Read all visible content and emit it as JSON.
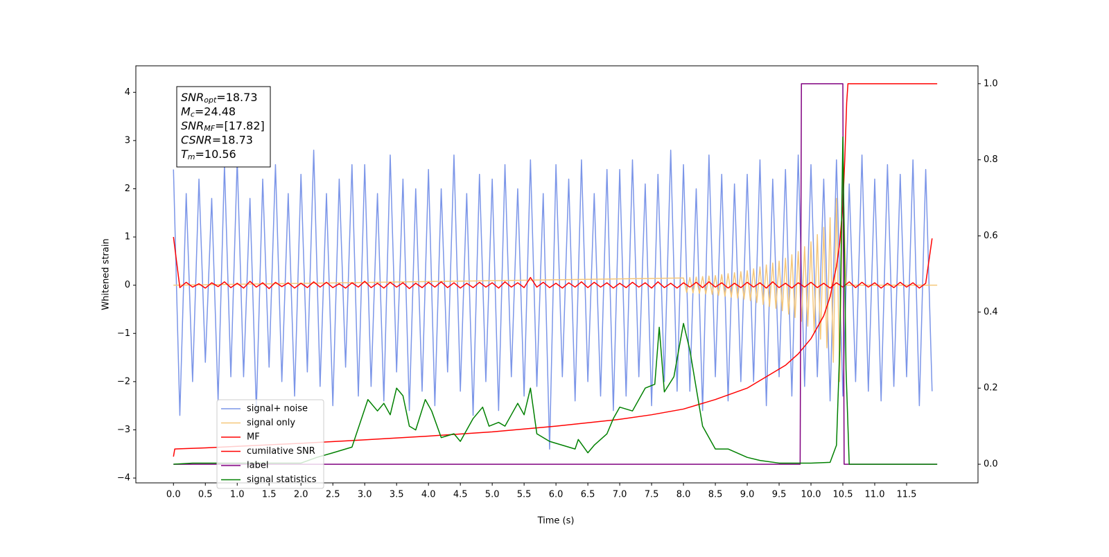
{
  "chart_data": {
    "type": "line",
    "xlabel": "Time (s)",
    "ylabel": "Whitened strain",
    "xlim": [
      -0.59,
      12.62
    ],
    "ylim": [
      -4.1,
      4.55
    ],
    "y2lim": [
      -0.049,
      1.047
    ],
    "xticks": [
      {
        "value": 0,
        "label": "0.0"
      },
      0.5,
      {
        "value": 1,
        "label": "1.0"
      },
      1.5,
      {
        "value": 2,
        "label": "2.0"
      },
      2.5,
      {
        "value": 3,
        "label": "3.0"
      },
      3.5,
      {
        "value": 4,
        "label": "4.0"
      },
      4.5,
      {
        "value": 5,
        "label": "5.0"
      },
      5.5,
      {
        "value": 6,
        "label": "6.0"
      },
      6.5,
      {
        "value": 7,
        "label": "7.0"
      },
      7.5,
      {
        "value": 8,
        "label": "8.0"
      },
      8.5,
      {
        "value": 9,
        "label": "9.0"
      },
      9.5,
      {
        "value": 10,
        "label": "10.0"
      },
      10.5,
      {
        "value": 11,
        "label": "11.0"
      },
      11.5
    ],
    "yticks": [
      {
        "value": -4,
        "label": "−4"
      },
      {
        "value": -3,
        "label": "−3"
      },
      {
        "value": -2,
        "label": "−2"
      },
      {
        "value": -1,
        "label": "−1"
      },
      0,
      1,
      2,
      3,
      4
    ],
    "y2ticks": [
      {
        "value": 0,
        "label": "0.0"
      },
      0.2,
      0.4,
      0.6,
      0.8,
      {
        "value": 1,
        "label": "1.0"
      }
    ],
    "legend_loc": "lower left",
    "annotation_box": [
      {
        "symbol": "SNR",
        "subscript": "opt",
        "text": "=18.73"
      },
      {
        "symbol": "M",
        "subscript": "c",
        "text": "=24.48"
      },
      {
        "symbol": "SNR",
        "subscript": "MF",
        "text": "=[17.82]"
      },
      {
        "symbol": "CSNR",
        "text": "=18.73"
      },
      {
        "symbol": "T",
        "subscript": "m",
        "text": "=10.56"
      }
    ],
    "x": [
      0,
      0.1,
      0.2,
      0.3,
      0.4,
      0.5,
      0.6,
      0.7,
      0.8,
      0.9,
      1,
      1.1,
      1.2,
      1.3,
      1.4,
      1.5,
      1.6,
      1.7,
      1.8,
      1.9,
      2,
      2.1,
      2.2,
      2.3,
      2.4,
      2.5,
      2.6,
      2.7,
      2.8,
      2.9,
      3,
      3.1,
      3.2,
      3.3,
      3.4,
      3.5,
      3.6,
      3.7,
      3.8,
      3.9,
      4,
      4.1,
      4.2,
      4.3,
      4.4,
      4.5,
      4.6,
      4.7,
      4.8,
      4.9,
      5,
      5.1,
      5.2,
      5.3,
      5.4,
      5.5,
      5.6,
      5.7,
      5.8,
      5.9,
      6,
      6.1,
      6.2,
      6.3,
      6.4,
      6.5,
      6.6,
      6.7,
      6.8,
      6.9,
      7,
      7.1,
      7.2,
      7.3,
      7.4,
      7.5,
      7.6,
      7.7,
      7.8,
      7.9,
      8,
      8.1,
      8.2,
      8.3,
      8.4,
      8.5,
      8.6,
      8.7,
      8.8,
      8.9,
      9,
      9.1,
      9.2,
      9.3,
      9.4,
      9.5,
      9.6,
      9.7,
      9.8,
      9.9,
      10,
      10.1,
      10.2,
      10.3,
      10.4,
      10.5,
      10.6,
      10.7,
      10.8,
      10.9,
      11,
      11.1,
      11.2,
      11.3,
      11.4,
      11.5,
      11.6,
      11.7,
      11.8,
      11.9
    ],
    "series": [
      {
        "name": "signal+ noise",
        "color": "#7b95e8",
        "values": [
          2.4,
          -2.7,
          1.9,
          -2.0,
          2.2,
          -1.6,
          1.8,
          -2.4,
          2.5,
          -1.9,
          2.6,
          -1.9,
          1.8,
          -2.6,
          2.2,
          -1.7,
          2.5,
          -2.0,
          1.9,
          -2.3,
          2.3,
          -1.8,
          2.8,
          -2.1,
          1.9,
          -2.5,
          2.2,
          -1.7,
          2.5,
          -2.3,
          2.5,
          -2.1,
          1.9,
          -2.4,
          2.7,
          -1.8,
          2.2,
          -2.6,
          2.0,
          -2.2,
          2.4,
          -2.5,
          2.0,
          -1.8,
          2.7,
          -2.2,
          1.9,
          -2.7,
          2.3,
          -2.0,
          2.2,
          -2.6,
          2.5,
          -1.9,
          2.0,
          -2.3,
          2.6,
          -2.1,
          1.9,
          -3.4,
          2.5,
          -1.9,
          2.2,
          -2.4,
          2.6,
          -2.0,
          1.9,
          -2.3,
          2.4,
          -2.6,
          2.4,
          -2.3,
          2.6,
          -1.9,
          2.1,
          -2.5,
          2.3,
          -2.0,
          2.8,
          -2.2,
          2.5,
          -2.2,
          2.0,
          -2.6,
          2.7,
          -1.9,
          2.3,
          -2.4,
          2.1,
          -2.0,
          2.3,
          -2.0,
          2.6,
          -2.5,
          2.2,
          -1.9,
          2.4,
          -2.3,
          2.7,
          -2.1,
          2.5,
          -1.9,
          2.2,
          -2.4,
          2.6,
          -2.3,
          2.1,
          -2.0,
          2.7,
          -2.2,
          2.2,
          -2.4,
          2.5,
          -2.1,
          2.3,
          -1.9,
          2.6,
          -2.5,
          2.4,
          -2.2
        ]
      },
      {
        "name": "signal only",
        "color": "#f5c77a",
        "x": [
          0,
          8.0,
          8.05,
          8.1,
          8.15,
          8.2,
          8.25,
          8.3,
          8.35,
          8.4,
          8.45,
          8.5,
          8.55,
          8.6,
          8.65,
          8.7,
          8.75,
          8.8,
          8.85,
          8.9,
          8.95,
          9.0,
          9.05,
          9.1,
          9.15,
          9.2,
          9.25,
          9.3,
          9.35,
          9.4,
          9.45,
          9.5,
          9.55,
          9.6,
          9.65,
          9.7,
          9.75,
          9.8,
          9.85,
          9.9,
          9.95,
          10.0,
          10.05,
          10.1,
          10.15,
          10.2,
          10.25,
          10.3,
          10.35,
          10.4,
          10.45,
          10.5,
          10.55,
          11.98
        ],
        "values": [
          0,
          0.15,
          -0.15,
          0.16,
          -0.16,
          0.17,
          -0.17,
          0.18,
          -0.18,
          0.19,
          -0.19,
          0.2,
          -0.21,
          0.22,
          -0.23,
          0.24,
          -0.25,
          0.26,
          -0.27,
          0.28,
          -0.29,
          0.3,
          -0.32,
          0.34,
          -0.36,
          0.38,
          -0.4,
          0.42,
          -0.44,
          0.46,
          -0.48,
          0.5,
          -0.53,
          0.56,
          -0.6,
          0.63,
          -0.67,
          0.7,
          -0.75,
          0.8,
          -0.85,
          0.9,
          -0.97,
          1.05,
          -1.12,
          1.2,
          -1.3,
          1.4,
          -1.6,
          1.8,
          -2.0,
          2.3,
          0,
          0
        ]
      },
      {
        "name": "MF",
        "color": "#ff0000",
        "values": [
          1.0,
          -0.05,
          0.06,
          -0.04,
          0.03,
          -0.06,
          0.05,
          -0.03,
          0.07,
          -0.05,
          0.04,
          -0.06,
          0.08,
          -0.04,
          0.05,
          -0.07,
          0.06,
          -0.03,
          0.05,
          -0.06,
          0.04,
          -0.05,
          0.07,
          -0.04,
          0.06,
          -0.05,
          0.03,
          -0.06,
          0.05,
          -0.04,
          0.08,
          -0.05,
          0.04,
          -0.06,
          0.06,
          -0.04,
          0.05,
          -0.07,
          0.04,
          -0.05,
          0.06,
          -0.04,
          0.07,
          -0.05,
          0.05,
          -0.06,
          0.04,
          -0.05,
          0.06,
          -0.04,
          0.05,
          -0.06,
          0.07,
          -0.04,
          0.05,
          -0.05,
          0.16,
          -0.04,
          0.06,
          -0.05,
          0.04,
          -0.06,
          0.05,
          -0.04,
          0.07,
          -0.05,
          0.06,
          -0.04,
          0.05,
          -0.06,
          0.04,
          -0.05,
          0.06,
          -0.04,
          0.05,
          -0.06,
          0.07,
          -0.05,
          0.04,
          -0.06,
          0.05,
          -0.04,
          0.06,
          -0.05,
          0.07,
          -0.04,
          0.05,
          -0.06,
          0.04,
          -0.05,
          0.06,
          -0.04,
          0.05,
          -0.06,
          0.07,
          -0.05,
          0.04,
          -0.06,
          0.05,
          -0.04,
          0.06,
          -0.05,
          0.04,
          -0.06,
          0.05,
          -0.04,
          0.07,
          -0.05,
          0.06,
          -0.04,
          0.05,
          -0.06,
          0.04,
          -0.05,
          0.06,
          -0.04,
          0.05,
          -0.06,
          0.04,
          0.97
        ]
      },
      {
        "name": "cumilative SNR",
        "color": "#ff0000",
        "axis": "y2",
        "x": [
          0,
          0.02,
          0.5,
          1,
          2,
          3,
          4,
          5,
          6,
          7,
          7.5,
          8,
          8.5,
          9,
          9.3,
          9.6,
          9.8,
          10,
          10.2,
          10.3,
          10.4,
          10.45,
          10.5,
          10.53,
          10.56,
          10.58,
          11.98
        ],
        "values": [
          0.02,
          0.04,
          0.043,
          0.047,
          0.055,
          0.064,
          0.074,
          0.085,
          0.1,
          0.118,
          0.13,
          0.145,
          0.17,
          0.2,
          0.23,
          0.26,
          0.29,
          0.33,
          0.39,
          0.44,
          0.52,
          0.58,
          0.68,
          0.8,
          0.95,
          1.0,
          1.0
        ]
      },
      {
        "name": "label",
        "color": "#800080",
        "axis": "y2",
        "x": [
          0,
          9.83,
          9.85,
          10.5,
          10.52,
          11.98
        ],
        "values": [
          0,
          0,
          1,
          1,
          0,
          0
        ]
      },
      {
        "name": "signal statistics",
        "color": "#008000",
        "axis": "y2",
        "x": [
          0,
          0.3,
          2,
          2.25,
          2.5,
          2.8,
          3.05,
          3.2,
          3.3,
          3.4,
          3.5,
          3.6,
          3.7,
          3.8,
          3.95,
          4.05,
          4.2,
          4.4,
          4.5,
          4.7,
          4.85,
          4.95,
          5.1,
          5.2,
          5.3,
          5.4,
          5.5,
          5.6,
          5.7,
          5.9,
          6.1,
          6.3,
          6.35,
          6.5,
          6.6,
          6.8,
          6.9,
          7.0,
          7.2,
          7.4,
          7.55,
          7.62,
          7.7,
          7.85,
          8.0,
          8.1,
          8.3,
          8.5,
          8.7,
          9.0,
          9.2,
          9.5,
          10.0,
          10.3,
          10.4,
          10.45,
          10.5,
          10.55,
          10.6,
          11.98
        ],
        "values": [
          0,
          0.003,
          0.003,
          0.018,
          0.03,
          0.045,
          0.17,
          0.14,
          0.16,
          0.13,
          0.2,
          0.18,
          0.1,
          0.09,
          0.17,
          0.14,
          0.07,
          0.08,
          0.06,
          0.12,
          0.15,
          0.1,
          0.11,
          0.1,
          0.13,
          0.16,
          0.13,
          0.2,
          0.08,
          0.06,
          0.05,
          0.04,
          0.065,
          0.03,
          0.05,
          0.08,
          0.12,
          0.15,
          0.14,
          0.2,
          0.21,
          0.36,
          0.19,
          0.23,
          0.37,
          0.3,
          0.1,
          0.04,
          0.04,
          0.018,
          0.01,
          0.003,
          0.003,
          0.005,
          0.05,
          0.3,
          0.86,
          0.25,
          0,
          0
        ]
      }
    ]
  }
}
